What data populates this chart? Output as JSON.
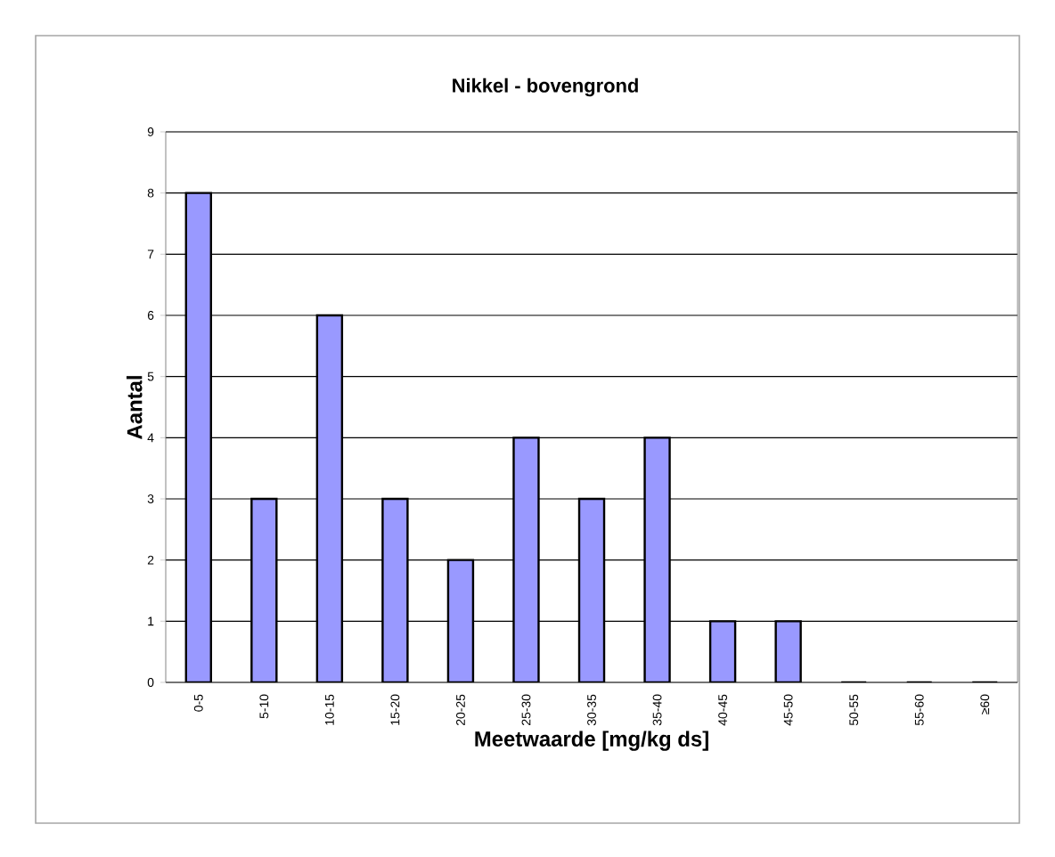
{
  "chart_data": {
    "type": "bar",
    "title": "Nikkel - bovengrond",
    "xlabel": "Meetwaarde [mg/kg ds]",
    "ylabel": "Aantal",
    "categories": [
      "0-5",
      "5-10",
      "10-15",
      "15-20",
      "20-25",
      "25-30",
      "30-35",
      "35-40",
      "40-45",
      "45-50",
      "50-55",
      "55-60",
      "≥60"
    ],
    "values": [
      8,
      3,
      6,
      3,
      2,
      4,
      3,
      4,
      1,
      1,
      0,
      0,
      0
    ],
    "color": "#9999ff",
    "ylim": [
      0,
      9
    ],
    "yticks": [
      0,
      1,
      2,
      3,
      4,
      5,
      6,
      7,
      8,
      9
    ],
    "grid": "y"
  }
}
